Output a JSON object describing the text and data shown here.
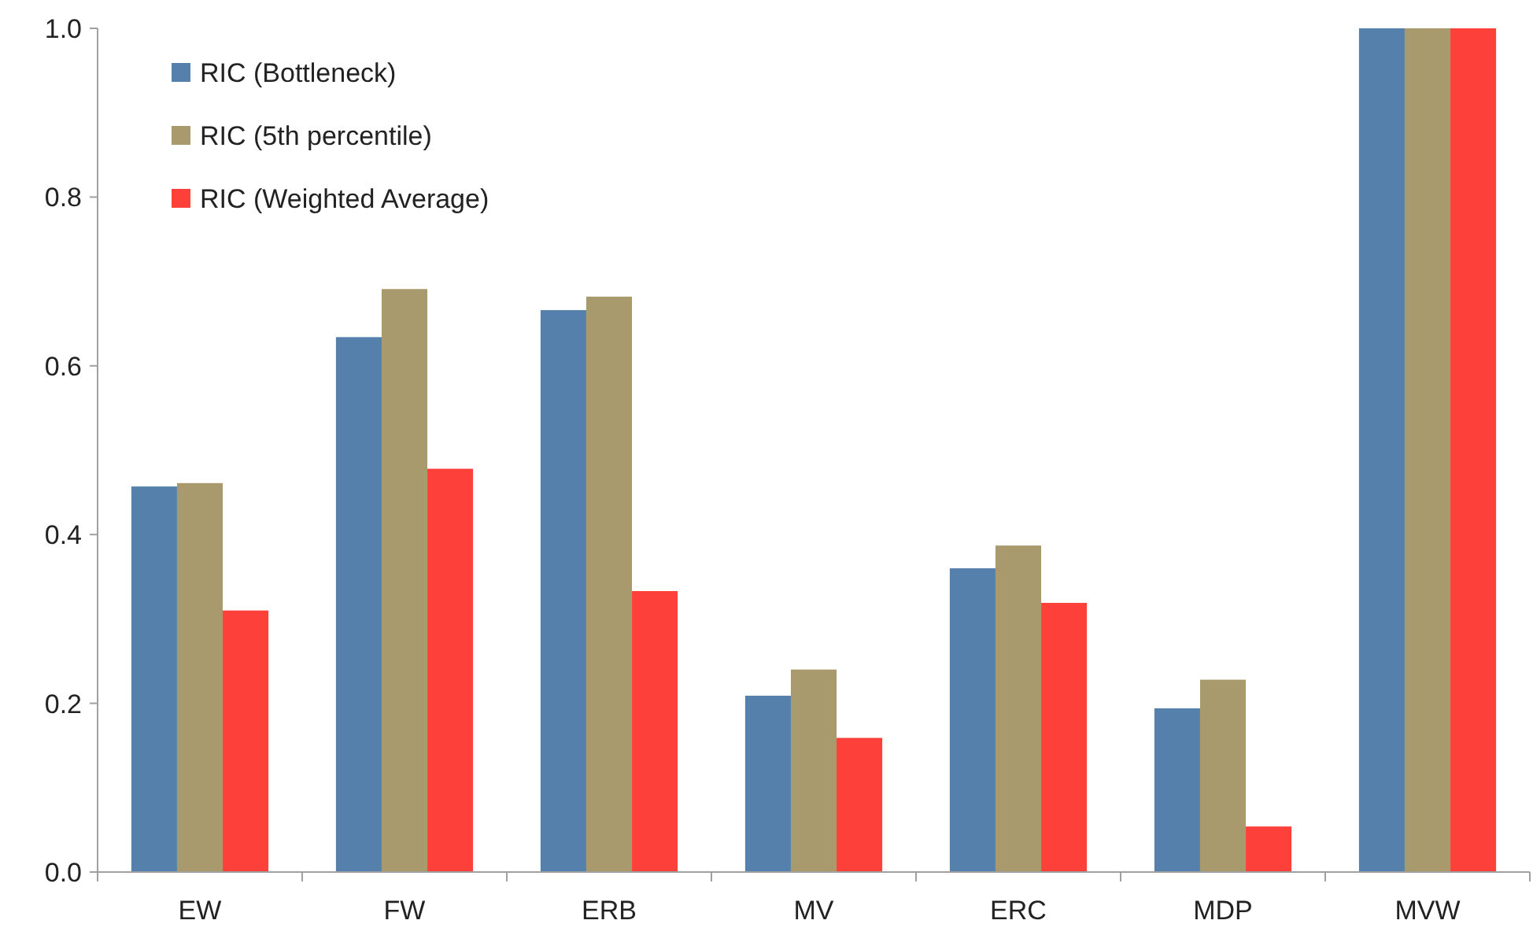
{
  "chart_data": {
    "type": "bar",
    "categories": [
      "EW",
      "FW",
      "ERB",
      "MV",
      "ERC",
      "MDP",
      "MVW"
    ],
    "series": [
      {
        "name": "RIC (Bottleneck)",
        "color": "#5580ab",
        "values": [
          0.457,
          0.634,
          0.666,
          0.209,
          0.36,
          0.194,
          1.0
        ]
      },
      {
        "name": "RIC (5th percentile)",
        "color": "#a99a6e",
        "values": [
          0.461,
          0.691,
          0.682,
          0.24,
          0.387,
          0.228,
          1.0
        ]
      },
      {
        "name": "RIC (Weighted Average)",
        "color": "#fd403a",
        "values": [
          0.31,
          0.478,
          0.333,
          0.159,
          0.319,
          0.054,
          1.0
        ]
      }
    ],
    "ylim": [
      0,
      1
    ],
    "yticks": [
      {
        "value": 0,
        "label": "0.0"
      },
      {
        "value": 0.2,
        "label": "0.2"
      },
      {
        "value": 0.4,
        "label": "0.4"
      },
      {
        "value": 0.6,
        "label": "0.6"
      },
      {
        "value": 0.8,
        "label": "0.8"
      },
      {
        "value": 1,
        "label": "1.0"
      }
    ],
    "grid": false,
    "legend": "top left"
  }
}
